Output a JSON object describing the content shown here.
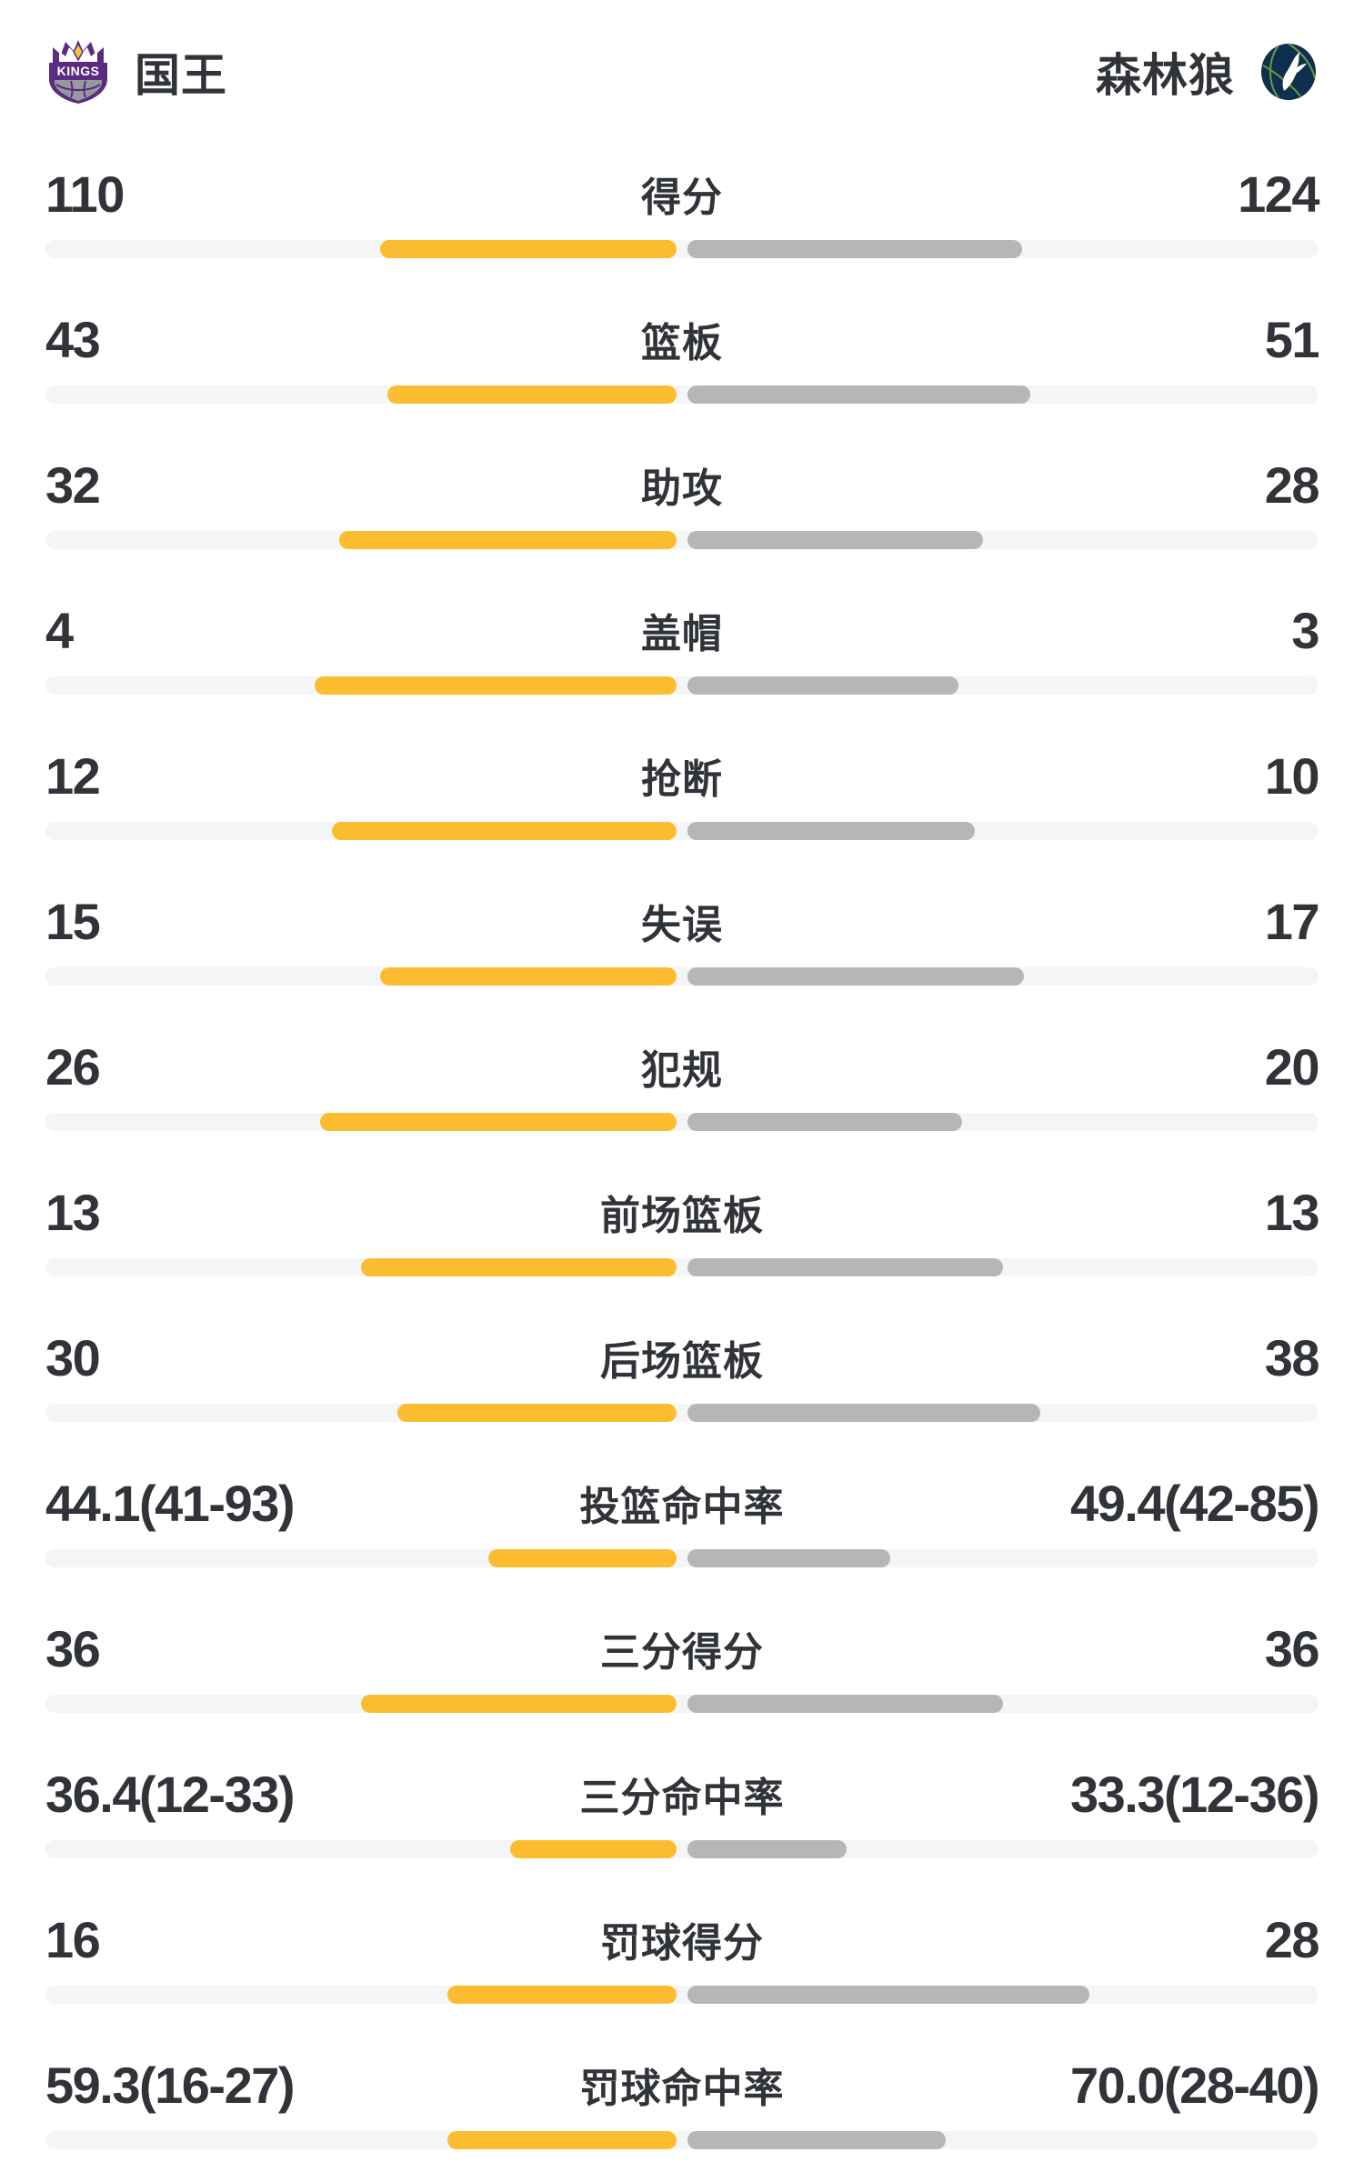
{
  "header": {
    "home": {
      "name": "国王",
      "logo_icon": "kings-logo-icon"
    },
    "away": {
      "name": "森林狼",
      "logo_icon": "timberwolves-logo-icon"
    }
  },
  "colors": {
    "home_bar": "#fbbd2f",
    "away_bar": "#b6b6b6",
    "track": "#f4f5f7",
    "text": "#303338",
    "kings_purple": "#5b2b82",
    "kings_gold": "#f7c53c",
    "kings_silver": "#97999c",
    "wolves_navy": "#0e2f4e",
    "wolves_green": "#6c9a3e"
  },
  "chart_data": {
    "type": "bar",
    "orientation": "horizontal-paired-from-center",
    "legend_position": "top (team headers)",
    "grid": false,
    "teams": [
      "国王",
      "森林狼"
    ],
    "rows": [
      {
        "label": "得分",
        "home": "110",
        "away": "124",
        "home_value": 110,
        "away_value": 124,
        "home_bar_pct": 23.3,
        "away_bar_pct": 26.3
      },
      {
        "label": "篮板",
        "home": "43",
        "away": "51",
        "home_value": 43,
        "away_value": 51,
        "home_bar_pct": 22.7,
        "away_bar_pct": 26.9
      },
      {
        "label": "助攻",
        "home": "32",
        "away": "28",
        "home_value": 32,
        "away_value": 28,
        "home_bar_pct": 26.5,
        "away_bar_pct": 23.2
      },
      {
        "label": "盖帽",
        "home": "4",
        "away": "3",
        "home_value": 4,
        "away_value": 3,
        "home_bar_pct": 28.4,
        "away_bar_pct": 21.3
      },
      {
        "label": "抢断",
        "home": "12",
        "away": "10",
        "home_value": 12,
        "away_value": 10,
        "home_bar_pct": 27.1,
        "away_bar_pct": 22.6
      },
      {
        "label": "失误",
        "home": "15",
        "away": "17",
        "home_value": 15,
        "away_value": 17,
        "home_bar_pct": 23.3,
        "away_bar_pct": 26.4
      },
      {
        "label": "犯规",
        "home": "26",
        "away": "20",
        "home_value": 26,
        "away_value": 20,
        "home_bar_pct": 28.0,
        "away_bar_pct": 21.6
      },
      {
        "label": "前场篮板",
        "home": "13",
        "away": "13",
        "home_value": 13,
        "away_value": 13,
        "home_bar_pct": 24.8,
        "away_bar_pct": 24.8
      },
      {
        "label": "后场篮板",
        "home": "30",
        "away": "38",
        "home_value": 30,
        "away_value": 38,
        "home_bar_pct": 21.9,
        "away_bar_pct": 27.7
      },
      {
        "label": "投篮命中率",
        "home": "44.1(41-93)",
        "away": "49.4(42-85)",
        "home_value": 44.1,
        "away_value": 49.4,
        "home_bar_pct": 14.8,
        "away_bar_pct": 15.9
      },
      {
        "label": "三分得分",
        "home": "36",
        "away": "36",
        "home_value": 36,
        "away_value": 36,
        "home_bar_pct": 24.8,
        "away_bar_pct": 24.8
      },
      {
        "label": "三分命中率",
        "home": "36.4(12-33)",
        "away": "33.3(12-36)",
        "home_value": 36.4,
        "away_value": 33.3,
        "home_bar_pct": 13.1,
        "away_bar_pct": 12.5
      },
      {
        "label": "罚球得分",
        "home": "16",
        "away": "28",
        "home_value": 16,
        "away_value": 28,
        "home_bar_pct": 18.0,
        "away_bar_pct": 31.6
      },
      {
        "label": "罚球命中率",
        "home": "59.3(16-27)",
        "away": "70.0(28-40)",
        "home_value": 59.3,
        "away_value": 70.0,
        "home_bar_pct": 18.0,
        "away_bar_pct": 20.3
      }
    ]
  }
}
